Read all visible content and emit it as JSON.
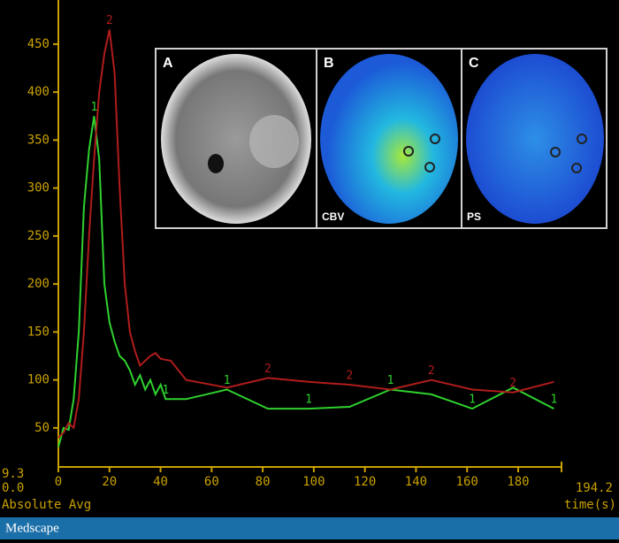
{
  "chart_data": {
    "type": "line",
    "y_axis_label": "Absolute Avg",
    "x_axis_label": "time(s)",
    "y_min_label": "9.3",
    "y_offset_label": "0.0",
    "x_max_label": "194.2",
    "axis_color": "#c9a100",
    "xlim": [
      0,
      194.2
    ],
    "ylim": [
      9.3,
      496
    ],
    "xticks": [
      0,
      20,
      40,
      60,
      80,
      100,
      120,
      140,
      160,
      180
    ],
    "yticks": [
      50,
      100,
      150,
      200,
      250,
      300,
      350,
      400,
      450
    ],
    "series": [
      {
        "name": "1",
        "color": "#2fd12f",
        "x": [
          0,
          2,
          4,
          6,
          8,
          10,
          12,
          14,
          16,
          18,
          20,
          22,
          24,
          26,
          28,
          30,
          32,
          34,
          36,
          38,
          40,
          42,
          50,
          66,
          82,
          98,
          114,
          130,
          146,
          162,
          178,
          194
        ],
        "values": [
          30,
          50,
          48,
          80,
          150,
          280,
          340,
          375,
          330,
          200,
          160,
          140,
          125,
          120,
          110,
          95,
          105,
          90,
          100,
          85,
          95,
          80,
          80,
          90,
          70,
          70,
          72,
          90,
          85,
          70,
          92,
          70
        ]
      },
      {
        "name": "2",
        "color": "#b01c1c",
        "x": [
          0,
          2,
          4,
          6,
          8,
          10,
          12,
          14,
          16,
          18,
          20,
          22,
          24,
          26,
          28,
          30,
          32,
          34,
          36,
          38,
          40,
          44,
          50,
          66,
          82,
          98,
          114,
          130,
          146,
          162,
          178,
          194
        ],
        "values": [
          40,
          45,
          55,
          50,
          80,
          150,
          250,
          330,
          400,
          440,
          465,
          420,
          300,
          200,
          150,
          130,
          115,
          120,
          125,
          128,
          122,
          120,
          100,
          92,
          102,
          98,
          95,
          90,
          100,
          90,
          87,
          98
        ]
      }
    ]
  },
  "inset": {
    "panels": [
      {
        "letter": "A"
      },
      {
        "letter": "B",
        "caption": "CBV"
      },
      {
        "letter": "C",
        "caption": "PS"
      }
    ]
  },
  "footer": {
    "brand": "Medscape"
  }
}
